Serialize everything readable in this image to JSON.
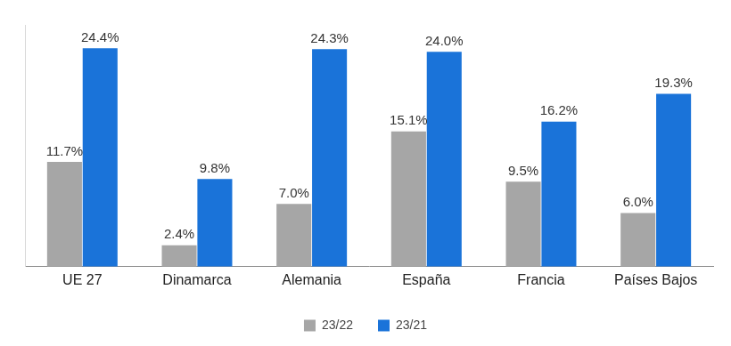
{
  "chart_data": {
    "type": "bar",
    "categories": [
      "UE 27",
      "Dinamarca",
      "Alemania",
      "España",
      "Francia",
      "Países Bajos"
    ],
    "series": [
      {
        "name": "23/22",
        "color": "#a6a6a6",
        "values": [
          11.7,
          2.4,
          7.0,
          15.1,
          9.5,
          6.0
        ],
        "value_labels": [
          "11.7%",
          "2.4%",
          "7.0%",
          "15.1%",
          "9.5%",
          "6.0%"
        ]
      },
      {
        "name": "23/21",
        "color": "#1a73d9",
        "values": [
          24.4,
          9.8,
          24.3,
          24.0,
          16.2,
          19.3
        ],
        "value_labels": [
          "24.4%",
          "9.8%",
          "24.3%",
          "24.0%",
          "16.2%",
          "19.3%"
        ]
      }
    ],
    "ylim": [
      0,
      27
    ],
    "grid": false,
    "legend": "bottom",
    "data_labels": true,
    "tick_labels": "x"
  }
}
